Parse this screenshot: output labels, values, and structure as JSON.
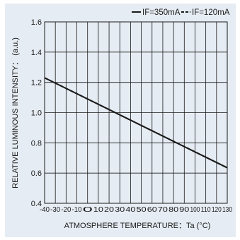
{
  "chart_data": {
    "type": "line",
    "xlabel": "ATMOSPHERE TEMPERATURE：Ta (°C)",
    "ylabel": "RELATIVE LUMINOUS INTENSITY： (a.u.)",
    "xlim": [
      -40,
      130
    ],
    "ylim": [
      0.4,
      1.6
    ],
    "x_ticks": [
      -40,
      -30,
      -20,
      -10,
      0,
      10,
      20,
      30,
      40,
      50,
      60,
      70,
      80,
      90,
      100,
      110,
      120,
      130
    ],
    "x_tick_labels": [
      "-40",
      "-30",
      "-20",
      "-10",
      "0",
      "10",
      "20",
      "30",
      "40",
      "50",
      "60",
      "70",
      "80",
      "90",
      "100",
      "110",
      "120",
      "130"
    ],
    "y_ticks": [
      0.4,
      0.6,
      0.8,
      1.0,
      1.2,
      1.4,
      1.6
    ],
    "y_tick_labels": [
      "0.4",
      "0.6",
      "0.8",
      "1.0",
      "1.2",
      "1.4",
      "1.6"
    ],
    "grid": true,
    "legend_position": "top-right",
    "series": [
      {
        "name": "IF=350mA",
        "line_style": "solid",
        "color": "#1a1a1a",
        "x": [
          -40,
          130
        ],
        "y": [
          1.23,
          0.635
        ]
      },
      {
        "name": "IF=120mA",
        "line_style": "dashed",
        "color": "#1a1a1a",
        "x": [
          -40,
          130
        ],
        "y": [
          1.23,
          0.635
        ]
      }
    ]
  }
}
